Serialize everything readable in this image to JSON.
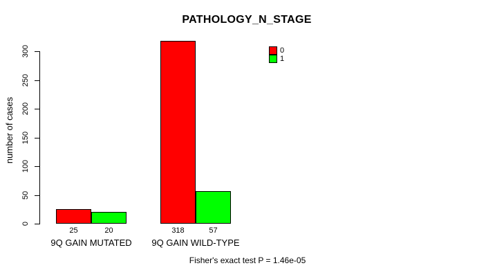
{
  "chart_data": {
    "type": "bar",
    "title": "PATHOLOGY_N_STAGE",
    "xlabel": "",
    "ylabel": "number of cases",
    "categories": [
      "9Q GAIN MUTATED",
      "9Q GAIN WILD-TYPE"
    ],
    "series": [
      {
        "name": "0",
        "color": "#ff0000",
        "values": [
          25,
          318
        ]
      },
      {
        "name": "1",
        "color": "#00ff00",
        "values": [
          20,
          57
        ]
      }
    ],
    "bar_value_labels": [
      [
        25,
        20
      ],
      [
        318,
        57
      ]
    ],
    "ylim": [
      0,
      300
    ],
    "yticks": [
      0,
      50,
      100,
      150,
      200,
      250,
      300
    ],
    "grid": false,
    "legend_position": "top-right",
    "legend_entries": [
      "0",
      "1"
    ],
    "annotation": "Fisher's exact test P = 1.46e-05"
  },
  "colors": {
    "series_0": "#ff0000",
    "series_1": "#00ff00",
    "axis": "#000000",
    "background": "#ffffff"
  }
}
